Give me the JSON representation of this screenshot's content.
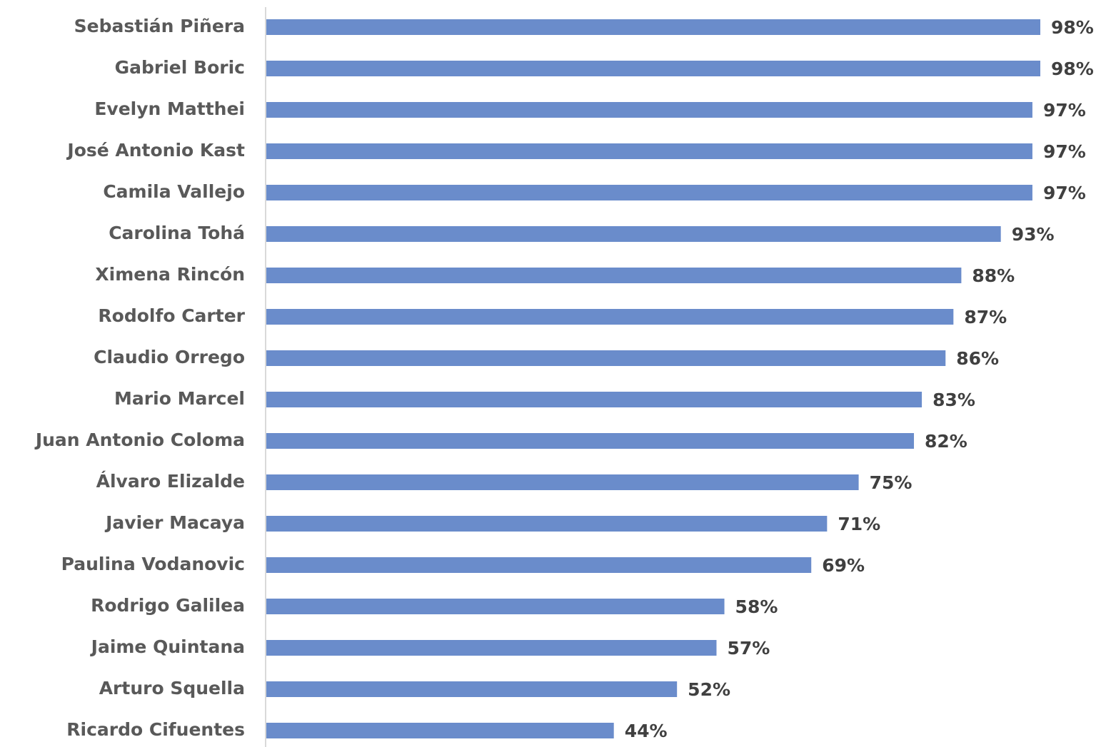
{
  "chart_data": {
    "type": "hbar",
    "categories": [
      "Sebastián Piñera",
      "Gabriel Boric",
      "Evelyn Matthei",
      "José Antonio Kast",
      "Camila Vallejo",
      "Carolina Tohá",
      "Ximena Rincón",
      "Rodolfo Carter",
      "Claudio Orrego",
      "Mario Marcel",
      "Juan Antonio Coloma",
      "Álvaro Elizalde",
      "Javier Macaya",
      "Paulina Vodanovic",
      "Rodrigo Galilea",
      "Jaime Quintana",
      "Arturo Squella",
      "Ricardo Cifuentes"
    ],
    "values": [
      98,
      98,
      97,
      97,
      97,
      93,
      88,
      87,
      86,
      83,
      82,
      75,
      71,
      69,
      58,
      57,
      52,
      44
    ],
    "value_labels": [
      "98%",
      "98%",
      "97%",
      "97%",
      "97%",
      "93%",
      "88%",
      "87%",
      "86%",
      "83%",
      "82%",
      "75%",
      "71%",
      "69%",
      "58%",
      "57%",
      "52%",
      "44%"
    ],
    "color": "#6a8ccb"
  }
}
